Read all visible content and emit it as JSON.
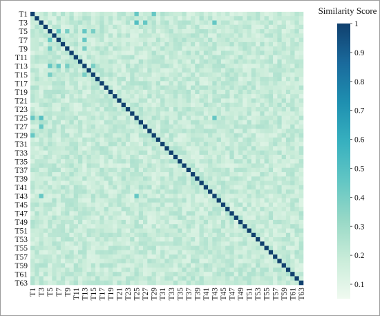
{
  "chart_data": {
    "type": "heatmap",
    "title": "",
    "xlabel": "",
    "ylabel": "",
    "n": 63,
    "row_labels": [
      "T1",
      "T3",
      "T5",
      "T7",
      "T9",
      "T11",
      "T13",
      "T15",
      "T17",
      "T19",
      "T21",
      "T23",
      "T25",
      "T27",
      "T29",
      "T31",
      "T33",
      "T35",
      "T37",
      "T39",
      "T41",
      "T43",
      "T45",
      "T47",
      "T49",
      "T51",
      "T53",
      "T55",
      "T57",
      "T59",
      "T61",
      "T63"
    ],
    "col_labels": [
      "T1",
      "T3",
      "T5",
      "T7",
      "T9",
      "T11",
      "T13",
      "T15",
      "T17",
      "T19",
      "T21",
      "T23",
      "T25",
      "T27",
      "T29",
      "T31",
      "T33",
      "T35",
      "T37",
      "T39",
      "T41",
      "T43",
      "T45",
      "T47",
      "T49",
      "T51",
      "T53",
      "T55",
      "T57",
      "T59",
      "T61",
      "T63"
    ],
    "value_range": [
      0.05,
      1.0
    ],
    "diagonal_value": 1.0,
    "typical_offdiagonal": 0.2,
    "notable_cells": [
      {
        "row": "T7",
        "col": "T5",
        "value": 0.45
      },
      {
        "row": "T7",
        "col": "T13",
        "value": 0.45
      },
      {
        "row": "T9",
        "col": "T5",
        "value": 0.4
      },
      {
        "row": "T13",
        "col": "T5",
        "value": 0.45
      },
      {
        "row": "T13",
        "col": "T9",
        "value": 0.4
      },
      {
        "row": "T15",
        "col": "T5",
        "value": 0.4
      },
      {
        "row": "T15",
        "col": "T13",
        "value": 0.4
      },
      {
        "row": "T25",
        "col": "T3",
        "value": 0.4
      },
      {
        "row": "T27",
        "col": "T3",
        "value": 0.45
      },
      {
        "row": "T43",
        "col": "T3",
        "value": 0.45
      },
      {
        "row": "T43",
        "col": "T25",
        "value": 0.45
      },
      {
        "row": "T1",
        "col": "T25",
        "value": 0.45
      },
      {
        "row": "T3",
        "col": "T25",
        "value": 0.5
      },
      {
        "row": "T1",
        "col": "T29",
        "value": 0.45
      },
      {
        "row": "T3",
        "col": "T43",
        "value": 0.45
      },
      {
        "row": "T25",
        "col": "T43",
        "value": 0.45
      }
    ],
    "colorbar": {
      "label": "Similarity Score",
      "ticks": [
        "1",
        "0.9",
        "0.8",
        "0.7",
        "0.6",
        "0.5",
        "0.4",
        "0.3",
        "0.2",
        "0.1"
      ],
      "tick_values": [
        1.0,
        0.9,
        0.8,
        0.7,
        0.6,
        0.5,
        0.4,
        0.3,
        0.2,
        0.1
      ],
      "colors": [
        "#f0faf0",
        "#c9ecd9",
        "#97d8c6",
        "#62c6c4",
        "#37b0bf",
        "#1e8fb0",
        "#1a6a9c",
        "#10406e"
      ]
    }
  }
}
